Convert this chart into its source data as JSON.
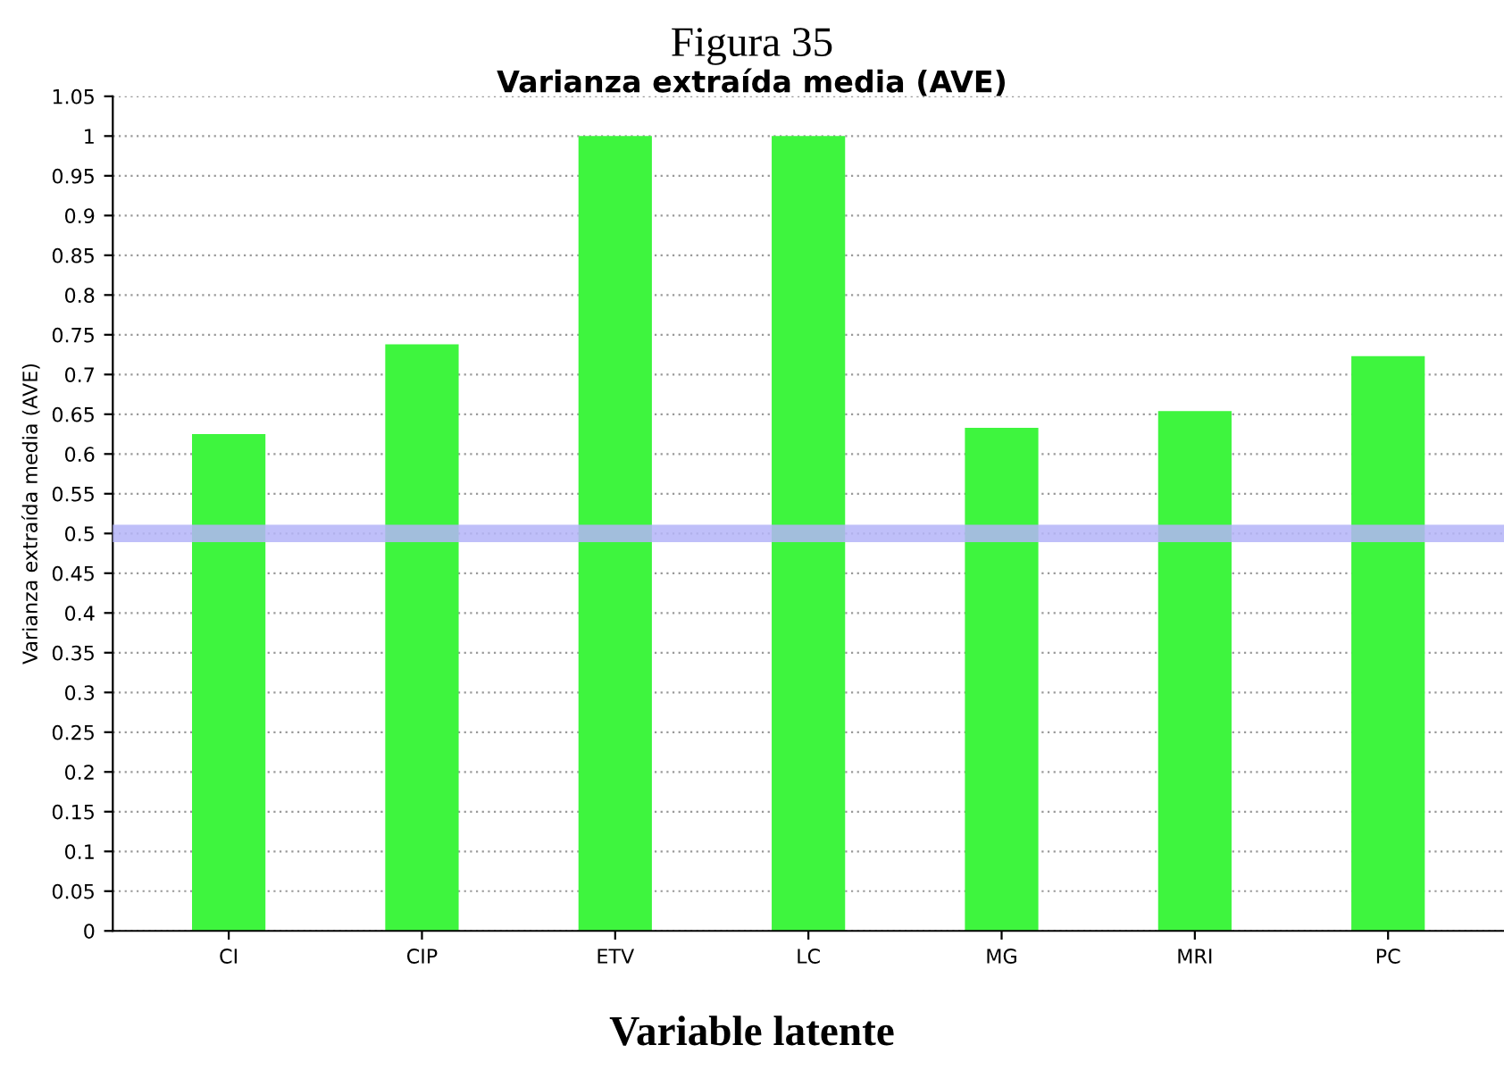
{
  "chart_data": {
    "type": "bar",
    "title": "Figura 35",
    "subtitle": "Varianza extraída media (AVE)",
    "xlabel": "Variable latente",
    "ylabel": "Varianza extraída media (AVE)",
    "categories": [
      "CI",
      "CIP",
      "ETV",
      "LC",
      "MG",
      "MRI",
      "PC"
    ],
    "values": [
      0.625,
      0.738,
      1.0,
      1.0,
      0.633,
      0.654,
      0.723
    ],
    "color": "#3ef53e",
    "ylim": [
      0,
      1.05
    ],
    "yticks": [
      0,
      0.05,
      0.1,
      0.15,
      0.2,
      0.25,
      0.3,
      0.35,
      0.4,
      0.45,
      0.5,
      0.55,
      0.6,
      0.65,
      0.7,
      0.75,
      0.8,
      0.85,
      0.9,
      0.95,
      1,
      1.05
    ],
    "grid": "y",
    "ref_lines": [
      {
        "axis": "y",
        "value": 0.5,
        "color": "#b4b4f8"
      }
    ]
  }
}
